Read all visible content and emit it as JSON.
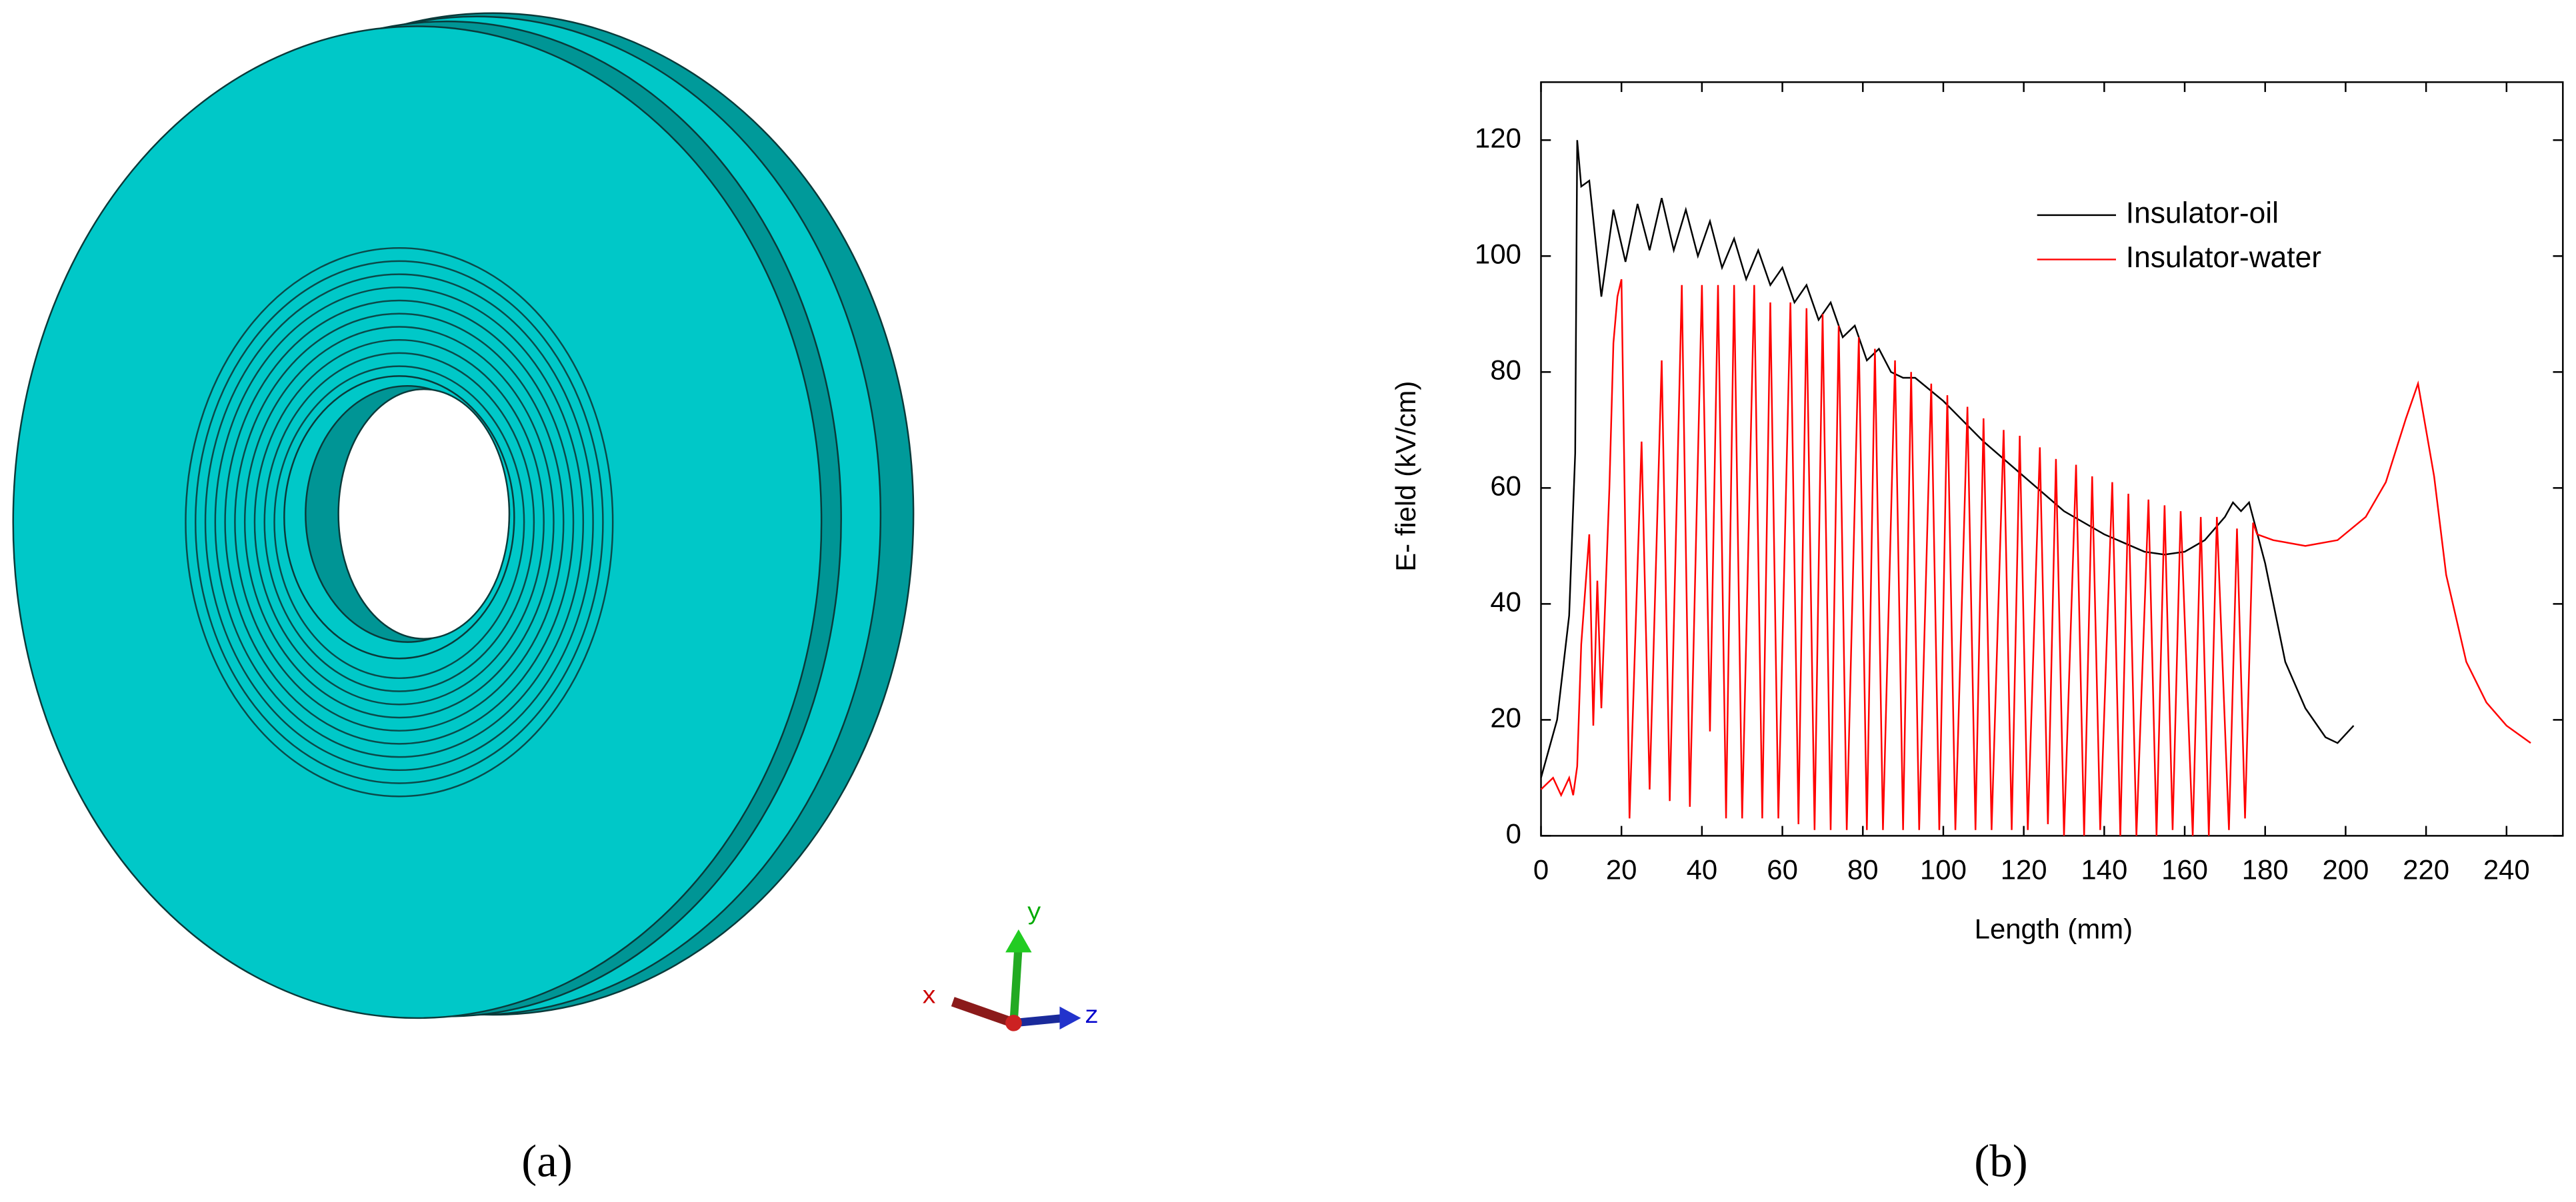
{
  "panel_labels": [
    "(a)",
    "(b)"
  ],
  "triad_labels": [
    "x",
    "y",
    "z"
  ],
  "chart_data": {
    "type": "line",
    "xlabel": "Length (mm)",
    "ylabel": "E- field (kV/cm)",
    "xlim": [
      0,
      254
    ],
    "ylim": [
      0,
      130
    ],
    "xticks": [
      0,
      20,
      40,
      60,
      80,
      100,
      120,
      140,
      160,
      180,
      200,
      220,
      240
    ],
    "yticks": [
      0,
      20,
      40,
      60,
      80,
      100,
      120
    ],
    "legend": "upper right",
    "series": [
      {
        "name": "Insulator-oil",
        "color": "#000000",
        "x": [
          0,
          4,
          7,
          8.5,
          9,
          10,
          12,
          15,
          18,
          21,
          24,
          27,
          30,
          33,
          36,
          39,
          42,
          45,
          48,
          51,
          54,
          57,
          60,
          63,
          66,
          69,
          72,
          75,
          78,
          81,
          84,
          87,
          90,
          93,
          100,
          110,
          120,
          130,
          140,
          150,
          155,
          160,
          165,
          170,
          172,
          174,
          176,
          180,
          185,
          190,
          195,
          198,
          202
        ],
        "values": [
          10,
          20,
          38,
          66,
          120,
          112,
          113,
          93,
          108,
          99,
          109,
          101,
          110,
          101,
          108,
          100,
          106,
          98,
          103,
          96,
          101,
          95,
          98,
          92,
          95,
          89,
          92,
          86,
          88,
          82,
          84,
          80,
          79,
          79,
          75,
          68,
          62,
          56,
          52,
          49,
          48.5,
          49,
          51,
          55,
          57.5,
          56,
          57.5,
          47,
          30,
          22,
          17,
          16,
          19
        ]
      },
      {
        "name": "Insulator-water",
        "color": "#ff0000",
        "x": [
          0,
          3,
          5,
          7,
          8,
          9,
          10,
          12,
          13,
          14,
          15,
          17,
          18,
          19,
          20,
          22,
          25,
          27,
          30,
          32,
          35,
          37,
          40,
          42,
          44,
          46,
          48,
          50,
          53,
          55,
          57,
          59,
          62,
          64,
          66,
          68,
          70,
          72,
          74,
          76,
          79,
          81,
          83,
          85,
          88,
          90,
          92,
          94,
          97,
          99,
          101,
          103,
          106,
          108,
          110,
          112,
          115,
          117,
          119,
          121,
          124,
          126,
          128,
          130,
          133,
          135,
          137,
          139,
          142,
          144,
          146,
          148,
          151,
          153,
          155,
          157,
          159,
          162,
          164,
          166,
          168,
          171,
          173,
          175,
          177,
          178,
          182,
          190,
          198,
          205,
          210,
          215,
          218,
          222,
          225,
          230,
          235,
          240,
          246
        ],
        "values": [
          8,
          10,
          7,
          10,
          7,
          12,
          33,
          52,
          19,
          44,
          22,
          60,
          85,
          93,
          96,
          3,
          68,
          8,
          82,
          6,
          95,
          5,
          95,
          18,
          95,
          3,
          95,
          3,
          95,
          3,
          92,
          3,
          92,
          2,
          91,
          1,
          90,
          1,
          88,
          1,
          86,
          1,
          84,
          1,
          82,
          1,
          80,
          1,
          78,
          1,
          76,
          1,
          74,
          1,
          72,
          1,
          70,
          1,
          69,
          1,
          67,
          2,
          65,
          0,
          64,
          0,
          62,
          1,
          61,
          0,
          59,
          0,
          58,
          0,
          57,
          1,
          56,
          0,
          55,
          0,
          55,
          1,
          53,
          3,
          54,
          52,
          51,
          50,
          51,
          55,
          61,
          72,
          78,
          62,
          45,
          30,
          23,
          19,
          16
        ]
      }
    ]
  }
}
